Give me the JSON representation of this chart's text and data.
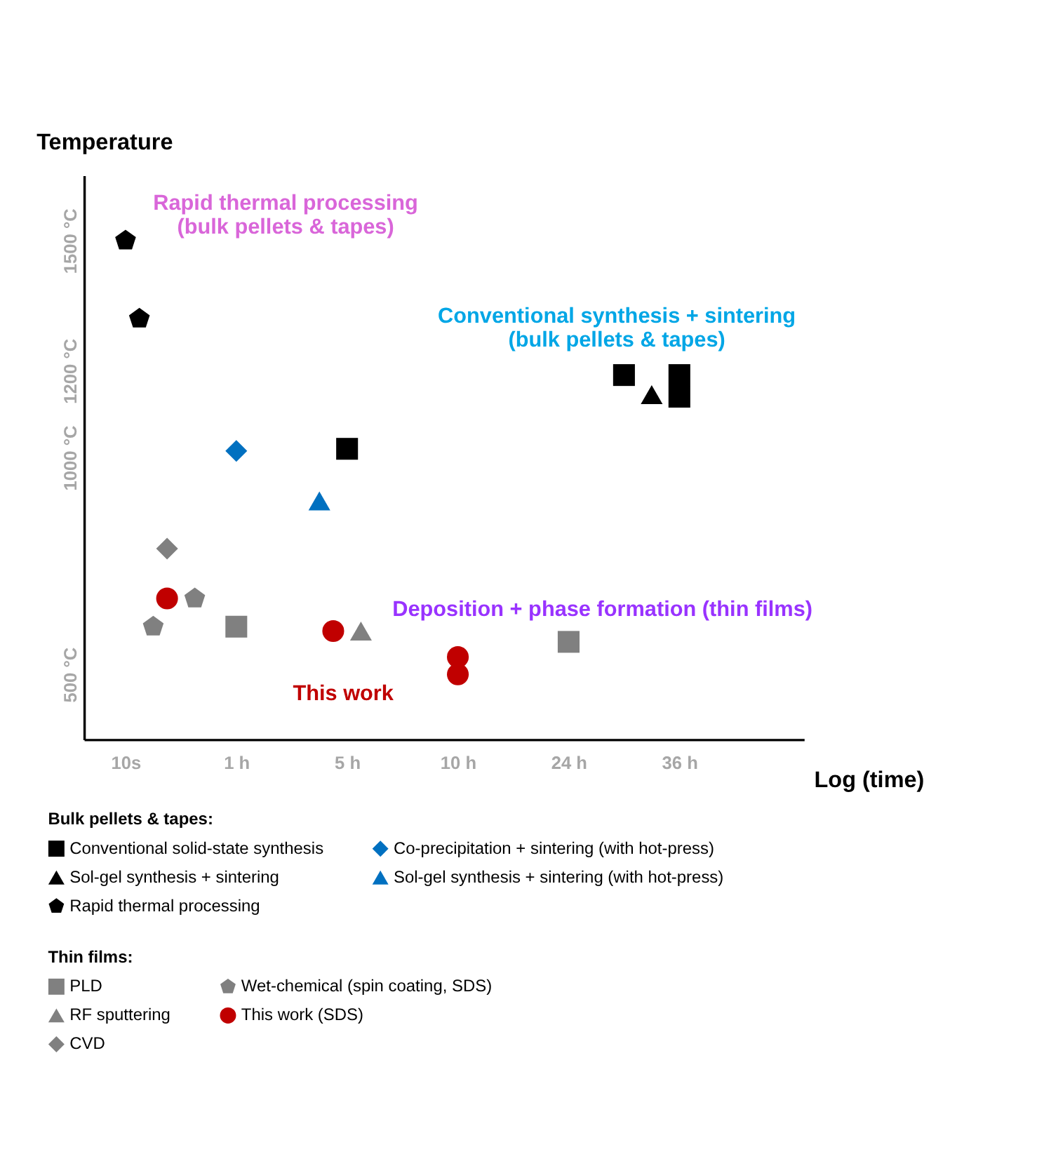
{
  "chart_data": {
    "type": "scatter",
    "xlabel": "Log (time)",
    "ylabel": "Temperature",
    "categories": [
      null,
      null,
      null,
      "10s",
      null,
      null,
      null,
      null,
      null,
      null,
      null,
      "1 h",
      null,
      null,
      null,
      null,
      null,
      null,
      null,
      "5 h",
      null,
      null,
      null,
      null,
      null,
      null,
      null,
      "10 h",
      null,
      null,
      null,
      null,
      null,
      null,
      null,
      "24 h",
      null,
      null,
      null,
      null,
      null,
      null,
      null,
      "36 h",
      null,
      null,
      null,
      null,
      null,
      null,
      null,
      null,
      null
    ],
    "ylim": [
      350,
      1650
    ],
    "yticks": [
      {
        "value": 500,
        "label": "500 °C"
      },
      {
        "value": 1000,
        "label": "1000 °C"
      },
      {
        "value": 1200,
        "label": "1200 °C"
      },
      {
        "value": 1500,
        "label": "1500 °C"
      }
    ],
    "grid": false,
    "legend": "bottom",
    "legend_title": "Bulk pellets & tapes:",
    "series": [
      {
        "name": "Conventional solid-state synthesis",
        "color": "#000000",
        "marker": "square",
        "values": [
          null,
          null,
          null,
          null,
          null,
          null,
          null,
          null,
          null,
          null,
          null,
          null,
          null,
          null,
          null,
          null,
          null,
          null,
          null,
          1020,
          null,
          null,
          null,
          null,
          null,
          null,
          null,
          null,
          null,
          null,
          null,
          null,
          null,
          null,
          null,
          null,
          null,
          null,
          null,
          1190,
          null,
          null,
          null,
          1190,
          null,
          null,
          null,
          null,
          null,
          null,
          null,
          null,
          null
        ]
      },
      {
        "name": "Sol-gel synthesis + sintering",
        "color": "#000000",
        "marker": "triangle",
        "values": [
          null,
          null,
          null,
          null,
          null,
          null,
          null,
          null,
          null,
          null,
          null,
          null,
          null,
          null,
          null,
          null,
          null,
          null,
          null,
          null,
          null,
          null,
          null,
          null,
          null,
          null,
          null,
          null,
          null,
          null,
          null,
          null,
          null,
          null,
          null,
          null,
          null,
          null,
          null,
          null,
          null,
          1145,
          null,
          null,
          null,
          null,
          null,
          null,
          null,
          null,
          null,
          null,
          null
        ]
      },
      {
        "name": "Rapid thermal processing",
        "color": "#000000",
        "values": [
          null,
          null,
          null,
          1500,
          1320,
          null,
          null,
          null,
          null,
          null,
          null,
          null,
          null,
          null,
          null,
          null,
          null,
          null,
          null,
          null,
          null,
          null,
          null,
          null,
          null,
          null,
          null,
          null,
          null,
          null,
          null,
          null,
          null,
          null,
          null,
          null,
          null,
          null,
          null,
          null,
          null,
          null,
          null,
          null,
          null,
          null,
          null,
          null,
          null,
          null,
          null,
          null,
          null
        ]
      },
      {
        "name": "Co-precipitation + sintering (with hot-press)",
        "color": "#0070c0",
        "marker": "diamond",
        "values": [
          null,
          null,
          null,
          null,
          null,
          null,
          null,
          null,
          null,
          null,
          null,
          1015,
          null,
          null,
          null,
          null,
          null,
          null,
          null,
          null,
          null,
          null,
          null,
          null,
          null,
          null,
          null,
          null,
          null,
          null,
          null,
          null,
          null,
          null,
          null,
          null,
          null,
          null,
          null,
          null,
          null,
          null,
          null,
          null,
          null,
          null,
          null,
          null,
          null,
          null,
          null,
          null,
          null
        ]
      },
      {
        "name": "Sol-gel synthesis + sintering (with hot-press)",
        "color": "#0070c0",
        "marker": "triangle",
        "values": [
          null,
          null,
          null,
          null,
          null,
          null,
          null,
          null,
          null,
          null,
          null,
          null,
          null,
          null,
          null,
          null,
          null,
          900,
          null,
          null,
          null,
          null,
          null,
          null,
          null,
          null,
          null,
          null,
          null,
          null,
          null,
          null,
          null,
          null,
          null,
          null,
          null,
          null,
          null,
          null,
          null,
          null,
          null,
          null,
          null,
          null,
          null,
          null,
          null,
          null,
          null,
          null,
          null
        ]
      },
      {
        "color": "#000000",
        "marker": "square",
        "values": [
          null,
          null,
          null,
          null,
          null,
          null,
          null,
          null,
          null,
          null,
          null,
          null,
          null,
          null,
          null,
          null,
          null,
          null,
          null,
          null,
          null,
          null,
          null,
          null,
          null,
          null,
          null,
          null,
          null,
          null,
          null,
          null,
          null,
          null,
          null,
          null,
          null,
          null,
          null,
          null,
          null,
          null,
          null,
          1140,
          null,
          null,
          null,
          null,
          null,
          null,
          null,
          null,
          null
        ]
      },
      {
        "name": "PLD",
        "color": "#808080",
        "marker": "square",
        "values": [
          null,
          null,
          null,
          null,
          null,
          null,
          null,
          null,
          null,
          null,
          null,
          610,
          null,
          null,
          null,
          null,
          null,
          null,
          null,
          null,
          null,
          null,
          null,
          null,
          null,
          null,
          null,
          null,
          null,
          null,
          null,
          null,
          null,
          null,
          null,
          575,
          null,
          null,
          null,
          null,
          null,
          null,
          null,
          null,
          null,
          null,
          null,
          null,
          null,
          null,
          null,
          null,
          null
        ]
      },
      {
        "name": "RF sputtering",
        "color": "#808080",
        "marker": "triangle",
        "values": [
          null,
          null,
          null,
          null,
          null,
          null,
          null,
          null,
          null,
          null,
          null,
          null,
          null,
          null,
          null,
          null,
          null,
          null,
          null,
          null,
          600,
          null,
          null,
          null,
          null,
          null,
          null,
          null,
          null,
          null,
          null,
          null,
          null,
          null,
          null,
          null,
          null,
          null,
          null,
          null,
          null,
          null,
          null,
          null,
          null,
          null,
          null,
          null,
          null,
          null,
          null,
          null,
          null
        ]
      },
      {
        "name": "CVD",
        "color": "#808080",
        "marker": "diamond",
        "values": [
          null,
          null,
          null,
          null,
          null,
          null,
          790,
          null,
          null,
          null,
          null,
          null,
          null,
          null,
          null,
          null,
          null,
          null,
          null,
          null,
          null,
          null,
          null,
          null,
          null,
          null,
          null,
          null,
          null,
          null,
          null,
          null,
          null,
          null,
          null,
          null,
          null,
          null,
          null,
          null,
          null,
          null,
          null,
          null,
          null,
          null,
          null,
          null,
          null,
          null,
          null,
          null,
          null
        ]
      },
      {
        "name": "Wet-chemical (spin coating, SDS)",
        "color": "#808080",
        "values": [
          null,
          null,
          null,
          null,
          null,
          610,
          null,
          null,
          675,
          null,
          null,
          null,
          null,
          null,
          null,
          null,
          null,
          null,
          null,
          null,
          null,
          null,
          null,
          null,
          null,
          null,
          null,
          null,
          null,
          null,
          null,
          null,
          null,
          null,
          null,
          null,
          null,
          null,
          null,
          null,
          null,
          null,
          null,
          null,
          null,
          null,
          null,
          null,
          null,
          null,
          null,
          null,
          null
        ]
      },
      {
        "name": "This work (SDS)",
        "color": "#c00000",
        "marker": "circle",
        "values": [
          null,
          null,
          null,
          null,
          null,
          null,
          675,
          null,
          null,
          null,
          null,
          null,
          null,
          null,
          null,
          null,
          null,
          null,
          600,
          null,
          null,
          null,
          null,
          null,
          null,
          null,
          null,
          540,
          null,
          null,
          null,
          null,
          null,
          null,
          null,
          null,
          null,
          null,
          null,
          null,
          null,
          null,
          null,
          null,
          null,
          null,
          null,
          null,
          null,
          null,
          null,
          null,
          null
        ]
      },
      {
        "color": "#c00000",
        "marker": "circle",
        "values": [
          null,
          null,
          null,
          null,
          null,
          null,
          null,
          null,
          null,
          null,
          null,
          null,
          null,
          null,
          null,
          null,
          null,
          null,
          null,
          null,
          null,
          null,
          null,
          null,
          null,
          null,
          null,
          500,
          null,
          null,
          null,
          null,
          null,
          null,
          null,
          null,
          null,
          null,
          null,
          null,
          null,
          null,
          null,
          null,
          null,
          null,
          null,
          null,
          null,
          null,
          null,
          null,
          null
        ]
      }
    ],
    "annotations": [
      "Rapid thermal processing\n(bulk pellets & tapes)",
      "Conventional synthesis + sintering\n(bulk pellets & tapes)",
      "Deposition + phase formation (thin films)",
      "This work",
      "Thin films:"
    ]
  }
}
